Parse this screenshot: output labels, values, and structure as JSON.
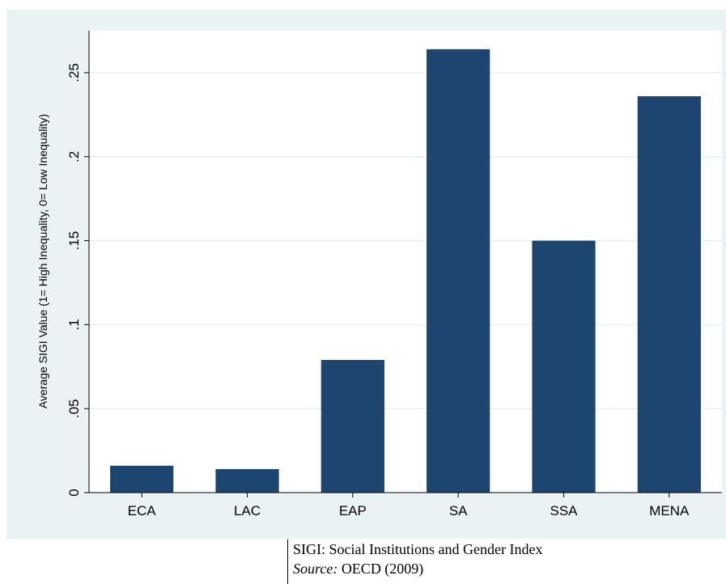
{
  "chart_data": {
    "type": "bar",
    "categories": [
      "ECA",
      "LAC",
      "EAP",
      "SA",
      "SSA",
      "MENA"
    ],
    "values": [
      0.016,
      0.014,
      0.079,
      0.264,
      0.15,
      0.236
    ],
    "ylabel": "Average SIGI Value (1= High Inequality, 0= Low Inequality)",
    "xlabel": "",
    "ylim": [
      0,
      0.275
    ],
    "yticks": [
      0,
      0.05,
      0.1,
      0.15,
      0.2,
      0.25
    ],
    "ytick_labels": [
      "0",
      ".05",
      ".1",
      ".15",
      ".2",
      ".25"
    ],
    "grid": true,
    "bar_color": "#1c4670",
    "plot_background": "#ffffff",
    "outer_background": "#eaf2f3",
    "gridline_color": "#e6efef"
  },
  "note": {
    "line1": "SIGI: Social Institutions and Gender Index",
    "source_label": "Source:",
    "source_text": " OECD (2009)"
  }
}
